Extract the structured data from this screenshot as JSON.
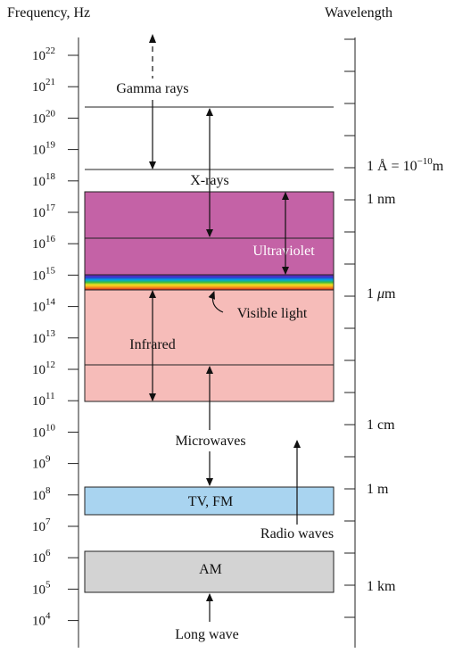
{
  "headers": {
    "frequency": "Frequency, Hz",
    "wavelength": "Wavelength"
  },
  "frequency_ticks": [
    {
      "base": "10",
      "exp": "22"
    },
    {
      "base": "10",
      "exp": "21"
    },
    {
      "base": "10",
      "exp": "20"
    },
    {
      "base": "10",
      "exp": "19"
    },
    {
      "base": "10",
      "exp": "18"
    },
    {
      "base": "10",
      "exp": "17"
    },
    {
      "base": "10",
      "exp": "16"
    },
    {
      "base": "10",
      "exp": "15"
    },
    {
      "base": "10",
      "exp": "14"
    },
    {
      "base": "10",
      "exp": "13"
    },
    {
      "base": "10",
      "exp": "12"
    },
    {
      "base": "10",
      "exp": "11"
    },
    {
      "base": "10",
      "exp": "10"
    },
    {
      "base": "10",
      "exp": "9"
    },
    {
      "base": "10",
      "exp": "8"
    },
    {
      "base": "10",
      "exp": "7"
    },
    {
      "base": "10",
      "exp": "6"
    },
    {
      "base": "10",
      "exp": "5"
    },
    {
      "base": "10",
      "exp": "4"
    }
  ],
  "wavelength_labels": {
    "angstrom_prefix": "1 Å = 10",
    "angstrom_exp": "−10",
    "angstrom_unit": "m",
    "nm": "1 nm",
    "um_prefix": "1 ",
    "um_mu": "μ",
    "um_unit": "m",
    "cm": "1 cm",
    "m": "1 m",
    "km": "1 km"
  },
  "bands": {
    "gamma": "Gamma rays",
    "xrays": "X-rays",
    "ultraviolet": "Ultraviolet",
    "visible": "Visible light",
    "infrared": "Infrared",
    "microwaves": "Microwaves",
    "tvfm": "TV, FM",
    "radio": "Radio waves",
    "am": "AM",
    "longwave": "Long wave"
  },
  "colors": {
    "ultraviolet": "#c462a6",
    "infrared": "#f6bcb9",
    "tvfm": "#a9d4f0",
    "am": "#d3d3d3",
    "spectrum": [
      "#7a1ea8",
      "#2d3fd1",
      "#00a6e0",
      "#3dbb3d",
      "#f2e020",
      "#f79a1e",
      "#e52a1e"
    ]
  }
}
